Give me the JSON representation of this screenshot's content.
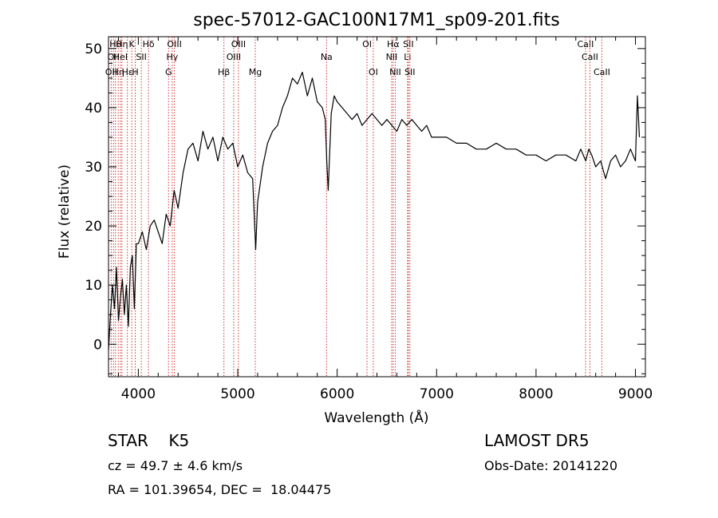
{
  "chart_data": {
    "type": "line",
    "title": "spec-57012-GAC100N17M1_sp09-201.fits",
    "xlabel": "Wavelength (Å)",
    "ylabel": "Flux (relative)",
    "xlim": [
      3700,
      9100
    ],
    "ylim": [
      -5.5,
      52
    ],
    "xticks": [
      4000,
      5000,
      6000,
      7000,
      8000,
      9000
    ],
    "yticks": [
      0,
      10,
      20,
      30,
      40,
      50
    ],
    "grid": false,
    "legend": "none",
    "line_color": "#000000",
    "marker_color": "#cc3333",
    "series": [
      {
        "x": [
          3700,
          3720,
          3740,
          3760,
          3780,
          3800,
          3820,
          3840,
          3860,
          3880,
          3900,
          3920,
          3940,
          3960,
          3980,
          4000,
          4040,
          4080,
          4120,
          4160,
          4200,
          4240,
          4280,
          4320,
          4360,
          4400,
          4450,
          4500,
          4550,
          4600,
          4650,
          4700,
          4750,
          4800,
          4850,
          4900,
          4950,
          5000,
          5050,
          5100,
          5150,
          5180,
          5200,
          5250,
          5300,
          5350,
          5400,
          5450,
          5500,
          5550,
          5600,
          5650,
          5700,
          5750,
          5800,
          5850,
          5880,
          5895,
          5910,
          5940,
          5970,
          6000,
          6050,
          6100,
          6150,
          6200,
          6250,
          6300,
          6350,
          6400,
          6450,
          6500,
          6550,
          6600,
          6650,
          6700,
          6750,
          6800,
          6850,
          6900,
          6950,
          7000,
          7100,
          7200,
          7300,
          7400,
          7500,
          7600,
          7700,
          7800,
          7900,
          8000,
          8100,
          8200,
          8300,
          8400,
          8450,
          8500,
          8530,
          8560,
          8600,
          8650,
          8700,
          8750,
          8800,
          8850,
          8900,
          8950,
          9000,
          9020,
          9040
        ],
        "y": [
          -1,
          5,
          10,
          6,
          13,
          4,
          8,
          11,
          5,
          10,
          3,
          13,
          15,
          6,
          17,
          17,
          19,
          16,
          20,
          21,
          19,
          17,
          22,
          20,
          26,
          23,
          29,
          33,
          34,
          31,
          36,
          33,
          35,
          31,
          35,
          33,
          34,
          30,
          32,
          29,
          28,
          16,
          24,
          30,
          34,
          36,
          37,
          40,
          42,
          45,
          44,
          46,
          42,
          45,
          41,
          40,
          38,
          31,
          26,
          39,
          42,
          41,
          40,
          39,
          38,
          39,
          37,
          38,
          39,
          38,
          37,
          38,
          37,
          36,
          38,
          37,
          38,
          37,
          36,
          37,
          35,
          35,
          35,
          34,
          34,
          33,
          33,
          34,
          33,
          33,
          32,
          32,
          31,
          32,
          32,
          31,
          33,
          31,
          33,
          32,
          30,
          31,
          28,
          31,
          32,
          30,
          31,
          33,
          31,
          42,
          35
        ]
      }
    ],
    "line_markers": [
      {
        "wl": 3727,
        "label": "OII",
        "row": 2
      },
      {
        "wl": 3750,
        "label": "OII",
        "row": 1
      },
      {
        "wl": 3770,
        "label": "Hθ",
        "row": 0
      },
      {
        "wl": 3798,
        "label": "Hη",
        "row": 2
      },
      {
        "wl": 3820,
        "label": "HeI",
        "row": 1
      },
      {
        "wl": 3835,
        "label": "Hη",
        "row": 0
      },
      {
        "wl": 3890,
        "label": "Hε",
        "row": 2
      },
      {
        "wl": 3934,
        "label": "K",
        "row": 0
      },
      {
        "wl": 3969,
        "label": "H",
        "row": 2
      },
      {
        "wl": 4030,
        "label": "SII",
        "row": 1
      },
      {
        "wl": 4102,
        "label": "Hδ",
        "row": 0
      },
      {
        "wl": 4304,
        "label": "G",
        "row": 2
      },
      {
        "wl": 4341,
        "label": "Hγ",
        "row": 1
      },
      {
        "wl": 4363,
        "label": "OIII",
        "row": 0
      },
      {
        "wl": 4861,
        "label": "Hβ",
        "row": 2
      },
      {
        "wl": 4959,
        "label": "OIII",
        "row": 1
      },
      {
        "wl": 5007,
        "label": "OIII",
        "row": 0
      },
      {
        "wl": 5176,
        "label": "Mg",
        "row": 2
      },
      {
        "wl": 5893,
        "label": "Na",
        "row": 1
      },
      {
        "wl": 6300,
        "label": "OI",
        "row": 0
      },
      {
        "wl": 6363,
        "label": "OI",
        "row": 2
      },
      {
        "wl": 6548,
        "label": "NII",
        "row": 1
      },
      {
        "wl": 6563,
        "label": "Hα",
        "row": 0
      },
      {
        "wl": 6584,
        "label": "NII",
        "row": 2
      },
      {
        "wl": 6708,
        "label": "Li",
        "row": 1
      },
      {
        "wl": 6716,
        "label": "SII",
        "row": 0
      },
      {
        "wl": 6731,
        "label": "SII",
        "row": 2
      },
      {
        "wl": 8498,
        "label": "CaII",
        "row": 0
      },
      {
        "wl": 8542,
        "label": "CaII",
        "row": 1
      },
      {
        "wl": 8662,
        "label": "CaII",
        "row": 2
      }
    ]
  },
  "info": {
    "object_type": "STAR",
    "subclass": "K5",
    "survey": "LAMOST DR5",
    "cz": "cz = 49.7 ± 4.6 km/s",
    "obs_date": "Obs-Date: 20141220",
    "coords": "RA = 101.39654, DEC =  18.04475"
  }
}
